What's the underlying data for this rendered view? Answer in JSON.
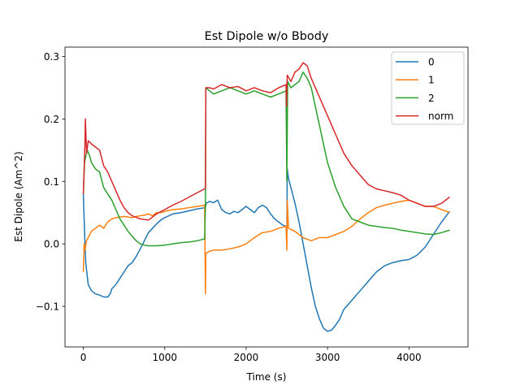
{
  "chart_data": {
    "type": "line",
    "title": "Est Dipole w/o Bbody",
    "xlabel": "Time (s)",
    "ylabel": "Est Dipole (Am^2)",
    "xlim": [
      -225,
      4725
    ],
    "ylim": [
      -0.165,
      0.315
    ],
    "xticks": [
      {
        "value": 0,
        "label": "0"
      },
      {
        "value": 1000,
        "label": "1000"
      },
      {
        "value": 2000,
        "label": "2000"
      },
      {
        "value": 3000,
        "label": "3000"
      },
      {
        "value": 4000,
        "label": "4000"
      }
    ],
    "yticks": [
      {
        "value": -0.1,
        "label": "−0.1"
      },
      {
        "value": 0.0,
        "label": "0.0"
      },
      {
        "value": 0.1,
        "label": "0.1"
      },
      {
        "value": 0.2,
        "label": "0.2"
      },
      {
        "value": 0.3,
        "label": "0.3"
      }
    ],
    "grid": false,
    "legend_position": "top-right",
    "series": [
      {
        "name": "0",
        "color": "#1f77b4",
        "points": [
          [
            0,
            0.08
          ],
          [
            15,
            0.02
          ],
          [
            30,
            -0.03
          ],
          [
            60,
            -0.065
          ],
          [
            100,
            -0.075
          ],
          [
            150,
            -0.08
          ],
          [
            200,
            -0.082
          ],
          [
            250,
            -0.085
          ],
          [
            300,
            -0.085
          ],
          [
            330,
            -0.08
          ],
          [
            350,
            -0.072
          ],
          [
            400,
            -0.065
          ],
          [
            450,
            -0.055
          ],
          [
            500,
            -0.045
          ],
          [
            550,
            -0.035
          ],
          [
            600,
            -0.03
          ],
          [
            650,
            -0.02
          ],
          [
            700,
            -0.008
          ],
          [
            750,
            0.005
          ],
          [
            800,
            0.018
          ],
          [
            850,
            0.025
          ],
          [
            900,
            0.032
          ],
          [
            950,
            0.038
          ],
          [
            1000,
            0.042
          ],
          [
            1100,
            0.048
          ],
          [
            1200,
            0.05
          ],
          [
            1300,
            0.053
          ],
          [
            1400,
            0.056
          ],
          [
            1500,
            0.058
          ],
          [
            1510,
            0.065
          ],
          [
            1550,
            0.068
          ],
          [
            1600,
            0.066
          ],
          [
            1650,
            0.07
          ],
          [
            1700,
            0.055
          ],
          [
            1750,
            0.05
          ],
          [
            1800,
            0.048
          ],
          [
            1850,
            0.052
          ],
          [
            1900,
            0.05
          ],
          [
            1950,
            0.055
          ],
          [
            2000,
            0.06
          ],
          [
            2050,
            0.055
          ],
          [
            2100,
            0.05
          ],
          [
            2150,
            0.058
          ],
          [
            2200,
            0.062
          ],
          [
            2250,
            0.058
          ],
          [
            2300,
            0.048
          ],
          [
            2350,
            0.04
          ],
          [
            2400,
            0.035
          ],
          [
            2450,
            0.03
          ],
          [
            2490,
            0.028
          ],
          [
            2500,
            0.02
          ],
          [
            2505,
            0.12
          ],
          [
            2520,
            0.105
          ],
          [
            2550,
            0.09
          ],
          [
            2600,
            0.065
          ],
          [
            2650,
            0.035
          ],
          [
            2700,
            0.0
          ],
          [
            2750,
            -0.035
          ],
          [
            2800,
            -0.07
          ],
          [
            2850,
            -0.1
          ],
          [
            2900,
            -0.12
          ],
          [
            2950,
            -0.135
          ],
          [
            3000,
            -0.14
          ],
          [
            3050,
            -0.138
          ],
          [
            3100,
            -0.13
          ],
          [
            3150,
            -0.12
          ],
          [
            3200,
            -0.105
          ],
          [
            3300,
            -0.09
          ],
          [
            3400,
            -0.075
          ],
          [
            3500,
            -0.06
          ],
          [
            3600,
            -0.045
          ],
          [
            3700,
            -0.035
          ],
          [
            3800,
            -0.03
          ],
          [
            3900,
            -0.027
          ],
          [
            4000,
            -0.025
          ],
          [
            4100,
            -0.018
          ],
          [
            4200,
            -0.005
          ],
          [
            4300,
            0.015
          ],
          [
            4400,
            0.035
          ],
          [
            4500,
            0.052
          ]
        ]
      },
      {
        "name": "1",
        "color": "#ff7f0e",
        "points": [
          [
            0,
            -0.045
          ],
          [
            10,
            0.0
          ],
          [
            20,
            -0.01
          ],
          [
            40,
            0.005
          ],
          [
            60,
            0.01
          ],
          [
            80,
            0.015
          ],
          [
            100,
            0.02
          ],
          [
            150,
            0.025
          ],
          [
            200,
            0.03
          ],
          [
            250,
            0.025
          ],
          [
            300,
            0.035
          ],
          [
            350,
            0.04
          ],
          [
            400,
            0.042
          ],
          [
            450,
            0.043
          ],
          [
            500,
            0.044
          ],
          [
            550,
            0.043
          ],
          [
            600,
            0.042
          ],
          [
            650,
            0.044
          ],
          [
            700,
            0.045
          ],
          [
            750,
            0.046
          ],
          [
            800,
            0.048
          ],
          [
            850,
            0.045
          ],
          [
            900,
            0.05
          ],
          [
            950,
            0.05
          ],
          [
            1000,
            0.052
          ],
          [
            1100,
            0.055
          ],
          [
            1200,
            0.056
          ],
          [
            1300,
            0.058
          ],
          [
            1400,
            0.06
          ],
          [
            1490,
            0.062
          ],
          [
            1500,
            -0.08
          ],
          [
            1505,
            -0.015
          ],
          [
            1550,
            -0.012
          ],
          [
            1600,
            -0.01
          ],
          [
            1700,
            -0.01
          ],
          [
            1800,
            -0.008
          ],
          [
            1900,
            -0.005
          ],
          [
            2000,
            0.0
          ],
          [
            2100,
            0.01
          ],
          [
            2200,
            0.018
          ],
          [
            2300,
            0.02
          ],
          [
            2400,
            0.025
          ],
          [
            2490,
            0.028
          ],
          [
            2500,
            -0.01
          ],
          [
            2505,
            0.07
          ],
          [
            2520,
            0.025
          ],
          [
            2600,
            0.02
          ],
          [
            2700,
            0.01
          ],
          [
            2800,
            0.005
          ],
          [
            2900,
            0.01
          ],
          [
            3000,
            0.01
          ],
          [
            3100,
            0.015
          ],
          [
            3200,
            0.02
          ],
          [
            3300,
            0.028
          ],
          [
            3400,
            0.04
          ],
          [
            3500,
            0.05
          ],
          [
            3600,
            0.058
          ],
          [
            3700,
            0.062
          ],
          [
            3800,
            0.065
          ],
          [
            3900,
            0.068
          ],
          [
            4000,
            0.07
          ],
          [
            4100,
            0.065
          ],
          [
            4200,
            0.06
          ],
          [
            4300,
            0.06
          ],
          [
            4400,
            0.055
          ],
          [
            4500,
            0.05
          ]
        ]
      },
      {
        "name": "2",
        "color": "#2ca02c",
        "points": [
          [
            0,
            0.08
          ],
          [
            15,
            0.13
          ],
          [
            30,
            0.14
          ],
          [
            50,
            0.15
          ],
          [
            80,
            0.14
          ],
          [
            100,
            0.13
          ],
          [
            150,
            0.12
          ],
          [
            200,
            0.115
          ],
          [
            250,
            0.09
          ],
          [
            300,
            0.08
          ],
          [
            350,
            0.07
          ],
          [
            400,
            0.055
          ],
          [
            450,
            0.04
          ],
          [
            500,
            0.03
          ],
          [
            550,
            0.02
          ],
          [
            600,
            0.012
          ],
          [
            650,
            0.005
          ],
          [
            700,
            0.0
          ],
          [
            750,
            -0.002
          ],
          [
            800,
            -0.003
          ],
          [
            900,
            -0.003
          ],
          [
            1000,
            -0.002
          ],
          [
            1100,
            0.0
          ],
          [
            1200,
            0.002
          ],
          [
            1300,
            0.003
          ],
          [
            1400,
            0.005
          ],
          [
            1490,
            0.008
          ],
          [
            1500,
            0.06
          ],
          [
            1505,
            0.25
          ],
          [
            1550,
            0.245
          ],
          [
            1600,
            0.24
          ],
          [
            1700,
            0.245
          ],
          [
            1800,
            0.25
          ],
          [
            1900,
            0.245
          ],
          [
            2000,
            0.24
          ],
          [
            2100,
            0.245
          ],
          [
            2200,
            0.24
          ],
          [
            2300,
            0.235
          ],
          [
            2400,
            0.24
          ],
          [
            2490,
            0.245
          ],
          [
            2500,
            0.1
          ],
          [
            2510,
            0.26
          ],
          [
            2550,
            0.25
          ],
          [
            2600,
            0.255
          ],
          [
            2650,
            0.26
          ],
          [
            2700,
            0.275
          ],
          [
            2750,
            0.265
          ],
          [
            2800,
            0.25
          ],
          [
            2850,
            0.22
          ],
          [
            2900,
            0.19
          ],
          [
            2950,
            0.16
          ],
          [
            3000,
            0.13
          ],
          [
            3100,
            0.09
          ],
          [
            3200,
            0.06
          ],
          [
            3300,
            0.04
          ],
          [
            3400,
            0.035
          ],
          [
            3500,
            0.03
          ],
          [
            3600,
            0.028
          ],
          [
            3700,
            0.026
          ],
          [
            3800,
            0.025
          ],
          [
            3900,
            0.022
          ],
          [
            4000,
            0.02
          ],
          [
            4100,
            0.018
          ],
          [
            4200,
            0.016
          ],
          [
            4300,
            0.015
          ],
          [
            4400,
            0.018
          ],
          [
            4500,
            0.022
          ]
        ]
      },
      {
        "name": "norm",
        "color": "#d62728",
        "points": [
          [
            0,
            0.08
          ],
          [
            20,
            0.16
          ],
          [
            25,
            0.2
          ],
          [
            40,
            0.145
          ],
          [
            60,
            0.165
          ],
          [
            100,
            0.16
          ],
          [
            150,
            0.155
          ],
          [
            200,
            0.15
          ],
          [
            250,
            0.125
          ],
          [
            300,
            0.115
          ],
          [
            350,
            0.1
          ],
          [
            400,
            0.085
          ],
          [
            450,
            0.07
          ],
          [
            500,
            0.058
          ],
          [
            550,
            0.05
          ],
          [
            600,
            0.045
          ],
          [
            700,
            0.04
          ],
          [
            800,
            0.038
          ],
          [
            900,
            0.048
          ],
          [
            1000,
            0.055
          ],
          [
            1100,
            0.062
          ],
          [
            1200,
            0.068
          ],
          [
            1300,
            0.075
          ],
          [
            1400,
            0.082
          ],
          [
            1490,
            0.088
          ],
          [
            1500,
            0.09
          ],
          [
            1505,
            0.25
          ],
          [
            1550,
            0.25
          ],
          [
            1600,
            0.248
          ],
          [
            1700,
            0.255
          ],
          [
            1800,
            0.25
          ],
          [
            1900,
            0.252
          ],
          [
            2000,
            0.245
          ],
          [
            2100,
            0.25
          ],
          [
            2200,
            0.245
          ],
          [
            2300,
            0.242
          ],
          [
            2400,
            0.25
          ],
          [
            2490,
            0.255
          ],
          [
            2495,
            0.22
          ],
          [
            2500,
            0.25
          ],
          [
            2505,
            0.27
          ],
          [
            2550,
            0.26
          ],
          [
            2600,
            0.275
          ],
          [
            2650,
            0.28
          ],
          [
            2700,
            0.29
          ],
          [
            2750,
            0.285
          ],
          [
            2800,
            0.265
          ],
          [
            2850,
            0.25
          ],
          [
            2900,
            0.235
          ],
          [
            2950,
            0.22
          ],
          [
            3000,
            0.205
          ],
          [
            3100,
            0.175
          ],
          [
            3200,
            0.145
          ],
          [
            3300,
            0.125
          ],
          [
            3400,
            0.11
          ],
          [
            3500,
            0.095
          ],
          [
            3600,
            0.088
          ],
          [
            3700,
            0.085
          ],
          [
            3800,
            0.082
          ],
          [
            3900,
            0.078
          ],
          [
            4000,
            0.07
          ],
          [
            4100,
            0.065
          ],
          [
            4200,
            0.06
          ],
          [
            4300,
            0.06
          ],
          [
            4400,
            0.065
          ],
          [
            4500,
            0.075
          ]
        ]
      }
    ]
  }
}
